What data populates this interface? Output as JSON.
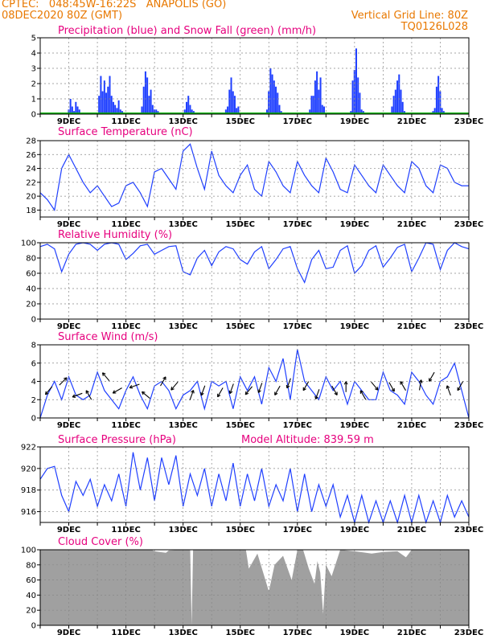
{
  "header": {
    "line1_left": "CPTEC:   048:45W-16:22S   ANAPOLIS (GO)",
    "line2_left": "08DEC2020 80Z (GMT)",
    "line2_right": "Vertical Grid Line: 80Z",
    "line3_right": "TQ0126L028"
  },
  "x_ticks": [
    "9DEC",
    "11DEC",
    "13DEC",
    "15DEC",
    "17DEC",
    "19DEC",
    "21DEC",
    "23DEC"
  ],
  "chart_data": [
    {
      "id": "precip",
      "type": "bar",
      "title": "Precipitation (blue) and Snow Fall (green) (mm/h)",
      "ylim": [
        0,
        5
      ],
      "yticks": [
        0,
        1,
        2,
        3,
        4,
        5
      ],
      "color": "#1f3fff",
      "snow_color": "#00b000",
      "x_start_day": 8.5,
      "x_step_days": 0.0625,
      "values": [
        0,
        0,
        0,
        0,
        0,
        0,
        0,
        0,
        0.3,
        1,
        0.5,
        0.2,
        0.8,
        0.5,
        0.3,
        0,
        0,
        0,
        0,
        0,
        0,
        0,
        0,
        0,
        0,
        1.2,
        2.5,
        1.5,
        2.2,
        1.4,
        1.8,
        2.5,
        1.2,
        0.8,
        0.6,
        0.4,
        0.9,
        0.3,
        0.2,
        0,
        0,
        0,
        0,
        0,
        0,
        0,
        0,
        0,
        0,
        0.5,
        1.8,
        2.8,
        2.4,
        1.2,
        1.6,
        0.6,
        0.3,
        0.3,
        0.2,
        0,
        0,
        0,
        0,
        0,
        0,
        0,
        0,
        0,
        0,
        0,
        0,
        0,
        0,
        0.3,
        0.8,
        1.2,
        0.6,
        0.3,
        0.2,
        0,
        0,
        0,
        0,
        0,
        0,
        0,
        0,
        0,
        0,
        0,
        0,
        0,
        0,
        0,
        0,
        0,
        0.3,
        0.5,
        1.6,
        2.4,
        1.5,
        1.2,
        0.4,
        0.5,
        0.1,
        0,
        0,
        0,
        0,
        0,
        0,
        0,
        0,
        0,
        0,
        0,
        0,
        0,
        0,
        0.3,
        1.5,
        3,
        2.6,
        2.2,
        1.8,
        1.4,
        0.6,
        0.2,
        0,
        0,
        0,
        0,
        0,
        0,
        0,
        0,
        0,
        0,
        0,
        0,
        0,
        0,
        0,
        0.3,
        1.2,
        1.2,
        2.2,
        2.8,
        1.6,
        2.4,
        0.6,
        0.5,
        0,
        0,
        0,
        0,
        0,
        0,
        0,
        0,
        0,
        0,
        0,
        0,
        0,
        0,
        0.2,
        2.2,
        2.9,
        4.3,
        2.4,
        1.4,
        0.3,
        0.2,
        0,
        0,
        0,
        0,
        0,
        0,
        0,
        0,
        0,
        0,
        0,
        0,
        0,
        0,
        0,
        0.5,
        1.2,
        1.6,
        2.2,
        2.6,
        1.6,
        0.8,
        0.2,
        0,
        0,
        0,
        0,
        0,
        0,
        0,
        0,
        0,
        0,
        0,
        0,
        0,
        0,
        0,
        0.2,
        0.4,
        1.8,
        2.5,
        1.5,
        0.4,
        0.2,
        0,
        0,
        0,
        0,
        0,
        0,
        0,
        0,
        0,
        0,
        0,
        0,
        0,
        0,
        0,
        0.4,
        0.6,
        1.2,
        1.8,
        2.2,
        1.4,
        1.6,
        0.6,
        0.2,
        0,
        0,
        0,
        0,
        0,
        0,
        0,
        0,
        0,
        0,
        0,
        0,
        0,
        0,
        0.4,
        1.2,
        2.8,
        3,
        1.6,
        1.4,
        1.2,
        0.5,
        0.2,
        0,
        0,
        0,
        0,
        0,
        0,
        0,
        0,
        0,
        0,
        0,
        0,
        0,
        0,
        0.2,
        0.8,
        1.6,
        2.2,
        1.8,
        0.3,
        0.2,
        0,
        0,
        0,
        0,
        0,
        0,
        0,
        0,
        0,
        0,
        0,
        0,
        0,
        0,
        0,
        0,
        0.4,
        1.8,
        3.2,
        2.4,
        1,
        0.4,
        0.2,
        0,
        0,
        0,
        0,
        0,
        0,
        0,
        0,
        0,
        0,
        0,
        0,
        0,
        0,
        0,
        0.8,
        1.4,
        2.2,
        2.6,
        1.2,
        1.6,
        0.4,
        0.2,
        0,
        0,
        0,
        0,
        0,
        0,
        0,
        0,
        0,
        0,
        0,
        0,
        0,
        0,
        0.4,
        0.6,
        1.2,
        1.6,
        1,
        1.2,
        0.6,
        0.3,
        0,
        0,
        0,
        0,
        0,
        0,
        0,
        0,
        0,
        0,
        0,
        0,
        0,
        0,
        0.4,
        1.4,
        1.8,
        2.3,
        1.2,
        1.4,
        0.8,
        0.6,
        0.4,
        0.2,
        0,
        0,
        0,
        0,
        0,
        0,
        0,
        0,
        0,
        0,
        0,
        0,
        0,
        0.3,
        0.8,
        2,
        3,
        1.6,
        2.2,
        1.8,
        1.4,
        0.4,
        0.5,
        0.2,
        0,
        0,
        0,
        0,
        0,
        0,
        0,
        0,
        0,
        0,
        0,
        0,
        0.4,
        1.4,
        2.2,
        2.3,
        1.8,
        0.6,
        0.2,
        0,
        0,
        0,
        0,
        0,
        0,
        0,
        0,
        0,
        0,
        0,
        0,
        0,
        0,
        0,
        0,
        0.2,
        0.6,
        1.8,
        1.2,
        0.8,
        0.5,
        0.3,
        0,
        0,
        0,
        0,
        0,
        0,
        0,
        0,
        0,
        0,
        0,
        0,
        0,
        0,
        0,
        0,
        0,
        0
      ]
    },
    {
      "id": "temp",
      "type": "line",
      "title": "Surface Temperature (nC)",
      "ylim": [
        17,
        28
      ],
      "yticks": [
        18,
        20,
        22,
        24,
        26,
        28
      ],
      "color": "#1f3fff",
      "x": [
        8,
        8.25,
        8.5,
        8.75,
        9,
        9.25,
        9.5,
        9.75,
        10,
        10.25,
        10.5,
        10.75,
        11,
        11.25,
        11.5,
        11.75,
        12,
        12.25,
        12.5,
        12.75,
        13,
        13.25,
        13.5,
        13.75,
        14,
        14.25,
        14.5,
        14.75,
        15,
        15.25,
        15.5,
        15.75,
        16,
        16.25,
        16.5,
        16.75,
        17,
        17.25,
        17.5,
        17.75,
        18,
        18.25,
        18.5,
        18.75,
        19,
        19.25,
        19.5,
        19.75,
        20,
        20.25,
        20.5,
        20.75,
        21,
        21.25,
        21.5,
        21.75,
        22,
        22.25,
        22.5,
        22.75,
        23
      ],
      "values": [
        20.5,
        19.5,
        18,
        24,
        26,
        24,
        22,
        20.5,
        21.5,
        20,
        18.5,
        19,
        21.5,
        22,
        20.5,
        18.5,
        23.5,
        24,
        22.5,
        21,
        26.5,
        27.5,
        24,
        21,
        26.5,
        23,
        21.5,
        20.5,
        23,
        24.5,
        21,
        20,
        25,
        23.5,
        21.5,
        20.5,
        25,
        23,
        21.5,
        20.5,
        25.5,
        23.5,
        21,
        20.5,
        24.5,
        23,
        21.5,
        20.5,
        24.5,
        23,
        21.5,
        20.5,
        25,
        24,
        21.5,
        20.5,
        24.5,
        24,
        22,
        21.5,
        21.5
      ]
    },
    {
      "id": "rh",
      "type": "line",
      "title": "Relative Humidity (%)",
      "ylim": [
        0,
        100
      ],
      "yticks": [
        0,
        20,
        40,
        60,
        80,
        100
      ],
      "color": "#1f3fff",
      "x": [
        8,
        8.25,
        8.5,
        8.75,
        9,
        9.25,
        9.5,
        9.75,
        10,
        10.25,
        10.5,
        10.75,
        11,
        11.25,
        11.5,
        11.75,
        12,
        12.25,
        12.5,
        12.75,
        13,
        13.25,
        13.5,
        13.75,
        14,
        14.25,
        14.5,
        14.75,
        15,
        15.25,
        15.5,
        15.75,
        16,
        16.25,
        16.5,
        16.75,
        17,
        17.25,
        17.5,
        17.75,
        18,
        18.25,
        18.5,
        18.75,
        19,
        19.25,
        19.5,
        19.75,
        20,
        20.25,
        20.5,
        20.75,
        21,
        21.25,
        21.5,
        21.75,
        22,
        22.25,
        22.5,
        22.75,
        23
      ],
      "values": [
        95,
        98,
        92,
        62,
        85,
        98,
        100,
        98,
        90,
        98,
        100,
        98,
        78,
        86,
        96,
        98,
        85,
        90,
        95,
        96,
        62,
        58,
        80,
        90,
        70,
        88,
        95,
        92,
        78,
        72,
        88,
        95,
        66,
        78,
        92,
        95,
        66,
        48,
        78,
        90,
        66,
        68,
        90,
        96,
        60,
        70,
        90,
        96,
        68,
        80,
        94,
        98,
        62,
        80,
        100,
        98,
        65,
        90,
        100,
        95,
        92
      ]
    },
    {
      "id": "wind",
      "type": "line",
      "title": "Surface Wind (m/s)",
      "ylim": [
        0,
        8
      ],
      "yticks": [
        0,
        2,
        4,
        6,
        8
      ],
      "color": "#1f3fff",
      "arrow_color": "#000000",
      "x": [
        8,
        8.25,
        8.5,
        8.75,
        9,
        9.25,
        9.5,
        9.75,
        10,
        10.25,
        10.5,
        10.75,
        11,
        11.25,
        11.5,
        11.75,
        12,
        12.25,
        12.5,
        12.75,
        13,
        13.25,
        13.5,
        13.75,
        14,
        14.25,
        14.5,
        14.75,
        15,
        15.25,
        15.5,
        15.75,
        16,
        16.25,
        16.5,
        16.75,
        17,
        17.25,
        17.5,
        17.75,
        18,
        18.25,
        18.5,
        18.75,
        19,
        19.25,
        19.5,
        19.75,
        20,
        20.25,
        20.5,
        20.75,
        21,
        21.25,
        21.5,
        21.75,
        22,
        22.25,
        22.5,
        22.75,
        23
      ],
      "values": [
        0,
        2.5,
        4,
        2,
        4.5,
        2.5,
        2,
        2.5,
        5,
        3,
        2,
        1,
        3,
        4.5,
        2.5,
        1,
        3.5,
        4,
        3,
        1,
        2.5,
        3,
        4,
        1,
        4,
        3.5,
        4,
        1,
        4.5,
        3,
        4.5,
        1.5,
        5.5,
        4,
        6.5,
        2,
        7.5,
        4,
        3,
        2,
        4.5,
        3,
        4,
        1.5,
        4,
        3,
        2,
        2,
        5,
        3,
        2.5,
        1.5,
        5,
        4,
        2.5,
        1.5,
        4,
        4.5,
        6,
        3,
        0
      ],
      "arrows_x": [
        8.3,
        8.8,
        9.3,
        9.7,
        10.3,
        10.7,
        11.3,
        11.7,
        12.3,
        12.7,
        13.3,
        13.7,
        14.3,
        14.7,
        15.3,
        15.7,
        16.3,
        16.7,
        17.3,
        17.7,
        18.3,
        18.7,
        19.3,
        19.7,
        20.3,
        20.7,
        21.3,
        21.7,
        22.3,
        22.7
      ],
      "arrows_speed": [
        3,
        4,
        2.5,
        2.5,
        4.5,
        3,
        3.5,
        2.5,
        4,
        3.5,
        2.5,
        3,
        2.8,
        3.2,
        3,
        3.3,
        3,
        3.8,
        3.5,
        2.6,
        3,
        3.4,
        2.5,
        3.5,
        3.4,
        3.5,
        3.6,
        4.5,
        3,
        3.5
      ],
      "arrows_dir": [
        230,
        45,
        200,
        120,
        130,
        210,
        200,
        140,
        60,
        230,
        70,
        250,
        240,
        250,
        230,
        250,
        240,
        250,
        240,
        250,
        300,
        90,
        120,
        310,
        300,
        120,
        80,
        240,
        110,
        240
      ]
    },
    {
      "id": "pres",
      "type": "line",
      "title": "Surface Pressure (hPa)",
      "extra_label": "Model Altitude: 839.59 m",
      "ylim": [
        915,
        922
      ],
      "yticks": [
        916,
        918,
        920,
        922
      ],
      "color": "#1f3fff",
      "x": [
        8,
        8.25,
        8.5,
        8.75,
        9,
        9.25,
        9.5,
        9.75,
        10,
        10.25,
        10.5,
        10.75,
        11,
        11.25,
        11.5,
        11.75,
        12,
        12.25,
        12.5,
        12.75,
        13,
        13.25,
        13.5,
        13.75,
        14,
        14.25,
        14.5,
        14.75,
        15,
        15.25,
        15.5,
        15.75,
        16,
        16.25,
        16.5,
        16.75,
        17,
        17.25,
        17.5,
        17.75,
        18,
        18.25,
        18.5,
        18.75,
        19,
        19.25,
        19.5,
        19.75,
        20,
        20.25,
        20.5,
        20.75,
        21,
        21.25,
        21.5,
        21.75,
        22,
        22.25,
        22.5,
        22.75,
        23
      ],
      "values": [
        919,
        920,
        920.2,
        917.5,
        916,
        918.8,
        917.5,
        919,
        916.5,
        918.5,
        917,
        919.5,
        916.5,
        921.5,
        918,
        921,
        917,
        921,
        918.5,
        921.2,
        916.5,
        919.5,
        917.5,
        920,
        916.5,
        919.5,
        917,
        920.5,
        916.5,
        919.5,
        917,
        920,
        916.5,
        918.5,
        917,
        920,
        916,
        919.5,
        916,
        918.5,
        916.5,
        918.5,
        915.5,
        917.5,
        915,
        917.5,
        915,
        917,
        915,
        917,
        915,
        917.5,
        915,
        917.5,
        915,
        917,
        915,
        917.5,
        915.5,
        917,
        915.5
      ]
    },
    {
      "id": "cloud",
      "type": "area",
      "title": "Cloud Cover (%)",
      "ylim": [
        0,
        100
      ],
      "yticks": [
        0,
        20,
        40,
        60,
        80,
        100
      ],
      "color": "#a0a0a0",
      "x": [
        8,
        11.9,
        12,
        12.4,
        12.5,
        13,
        13.25,
        13.3,
        13.35,
        13.4,
        14,
        15.2,
        15.3,
        15.6,
        15.8,
        16,
        16.2,
        16.5,
        16.8,
        17,
        17.2,
        17.4,
        17.6,
        17.7,
        17.8,
        17.9,
        18,
        18.2,
        18.5,
        19,
        19.2,
        19.4,
        19.6,
        19.8,
        20,
        20.5,
        20.8,
        21,
        21.3,
        21.5,
        22,
        23
      ],
      "values": [
        100,
        100,
        98,
        96,
        99,
        100,
        100,
        0,
        100,
        100,
        100,
        100,
        75,
        95,
        70,
        45,
        80,
        92,
        60,
        100,
        100,
        75,
        55,
        85,
        70,
        15,
        80,
        65,
        100,
        98,
        97,
        96,
        95,
        96,
        97,
        98,
        90,
        100,
        100,
        100,
        100,
        100
      ]
    }
  ]
}
